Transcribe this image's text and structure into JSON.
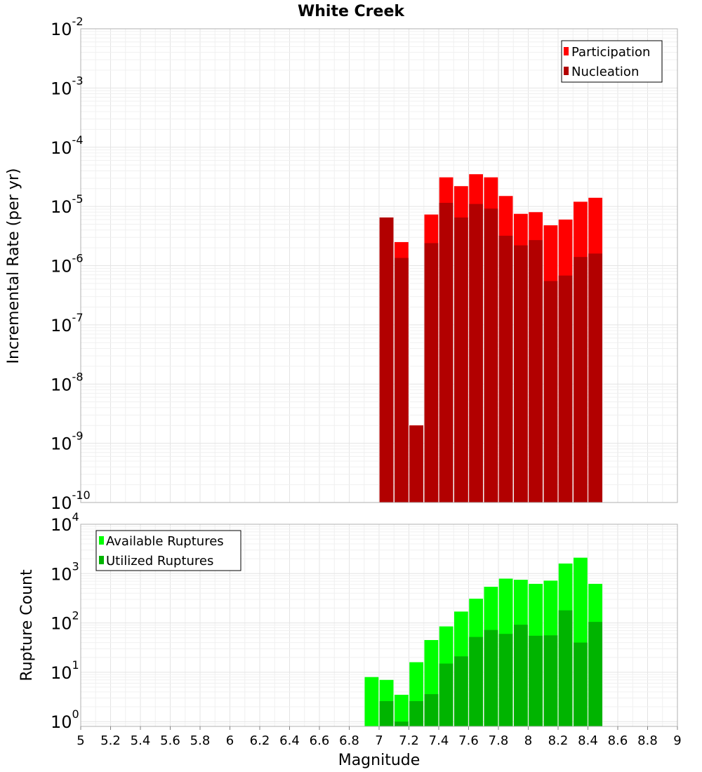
{
  "chart_data": [
    {
      "type": "bar",
      "title": "White Creek",
      "xlabel": "Magnitude",
      "ylabel": "Incremental Rate (per yr)",
      "yscale": "log",
      "xlim": [
        5,
        9
      ],
      "ylim": [
        1e-10,
        0.01
      ],
      "bin_width": 0.1,
      "legend_position": "top-right",
      "series": [
        {
          "name": "Participation",
          "color": "#ff0000",
          "x": [
            7.05,
            7.15,
            7.25,
            7.35,
            7.45,
            7.55,
            7.65,
            7.75,
            7.85,
            7.95,
            8.05,
            8.15,
            8.25,
            8.35,
            8.45
          ],
          "values": [
            6.5e-06,
            2.5e-06,
            2e-09,
            7.3e-06,
            3.1e-05,
            2.2e-05,
            3.5e-05,
            3.1e-05,
            1.5e-05,
            7.5e-06,
            8e-06,
            4.8e-06,
            6e-06,
            1.2e-05,
            1.4e-05
          ]
        },
        {
          "name": "Nucleation",
          "color": "#b20000",
          "x": [
            7.05,
            7.15,
            7.25,
            7.35,
            7.45,
            7.55,
            7.65,
            7.75,
            7.85,
            7.95,
            8.05,
            8.15,
            8.25,
            8.35,
            8.45
          ],
          "values": [
            6.5e-06,
            1.35e-06,
            2e-09,
            2.4e-06,
            1.15e-05,
            6.5e-06,
            1.1e-05,
            9.2e-06,
            3.2e-06,
            2.2e-06,
            2.7e-06,
            5.5e-07,
            6.8e-07,
            1.4e-06,
            1.6e-06
          ]
        }
      ],
      "y_ticks": [
        {
          "base": "10",
          "exp": "-2"
        },
        {
          "base": "10",
          "exp": "-3"
        },
        {
          "base": "10",
          "exp": "-4"
        },
        {
          "base": "10",
          "exp": "-5"
        },
        {
          "base": "10",
          "exp": "-6"
        },
        {
          "base": "10",
          "exp": "-7"
        },
        {
          "base": "10",
          "exp": "-8"
        },
        {
          "base": "10",
          "exp": "-9"
        },
        {
          "base": "10",
          "exp": "-10"
        }
      ],
      "y_tick_values": [
        -2,
        -3,
        -4,
        -5,
        -6,
        -7,
        -8,
        -9,
        -10
      ]
    },
    {
      "type": "bar",
      "title": "",
      "xlabel": "Magnitude",
      "ylabel": "Rupture Count",
      "yscale": "log",
      "xlim": [
        5,
        9
      ],
      "ylim": [
        0.8,
        10000
      ],
      "bin_width": 0.1,
      "legend_position": "top-left",
      "series": [
        {
          "name": "Available Ruptures",
          "color": "#00ff00",
          "x": [
            6.95,
            7.05,
            7.15,
            7.25,
            7.35,
            7.45,
            7.55,
            7.65,
            7.75,
            7.85,
            7.95,
            8.05,
            8.15,
            8.25,
            8.35,
            8.45
          ],
          "values": [
            8,
            7,
            3.5,
            16,
            45,
            85,
            170,
            310,
            540,
            790,
            750,
            620,
            720,
            1600,
            2100,
            620
          ]
        },
        {
          "name": "Utilized Ruptures",
          "color": "#00b400",
          "x": [
            6.95,
            7.05,
            7.15,
            7.25,
            7.35,
            7.45,
            7.55,
            7.65,
            7.75,
            7.85,
            7.95,
            8.05,
            8.15,
            8.25,
            8.35,
            8.45
          ],
          "values": [
            0,
            2.6,
            1,
            2.6,
            3.6,
            15,
            21,
            52,
            72,
            60,
            92,
            55,
            56,
            180,
            40,
            105
          ]
        }
      ],
      "y_ticks": [
        {
          "base": "10",
          "exp": "4"
        },
        {
          "base": "10",
          "exp": "3"
        },
        {
          "base": "10",
          "exp": "2"
        },
        {
          "base": "10",
          "exp": "1"
        },
        {
          "base": "10",
          "exp": "0"
        }
      ],
      "y_tick_values": [
        4,
        3,
        2,
        1,
        0
      ],
      "x_ticks": [
        "5",
        "5.2",
        "5.4",
        "5.6",
        "5.8",
        "6",
        "6.2",
        "6.4",
        "6.6",
        "6.8",
        "7",
        "7.2",
        "7.4",
        "7.6",
        "7.8",
        "8",
        "8.2",
        "8.4",
        "8.6",
        "8.8",
        "9"
      ],
      "x_tick_values": [
        5,
        5.2,
        5.4,
        5.6,
        5.8,
        6,
        6.2,
        6.4,
        6.6,
        6.8,
        7,
        7.2,
        7.4,
        7.6,
        7.8,
        8,
        8.2,
        8.4,
        8.6,
        8.8,
        9
      ]
    }
  ]
}
